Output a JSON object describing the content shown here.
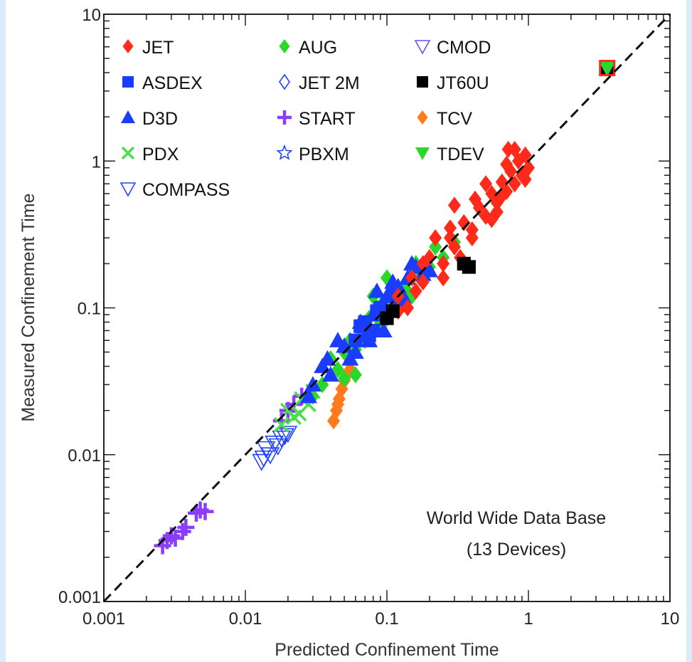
{
  "chart_data": {
    "type": "scatter",
    "xlabel": "Predicted Confinement Time",
    "ylabel": "Measured Confinement Time",
    "xscale": "log",
    "yscale": "log",
    "xlim": [
      0.001,
      10
    ],
    "ylim": [
      0.001,
      10
    ],
    "x_tick_labels": [
      "0.001",
      "0.01",
      "0.1",
      "1",
      "10"
    ],
    "y_tick_labels": [
      "0.001",
      "0.01",
      "0.1",
      "1",
      "10"
    ],
    "x_tick_values": [
      0.001,
      0.01,
      0.1,
      1,
      10
    ],
    "y_tick_values": [
      0.001,
      0.01,
      0.1,
      1,
      10
    ],
    "reference_line": {
      "style": "dashed",
      "color": "#111111",
      "from": [
        0.001,
        0.001
      ],
      "to": [
        10,
        10
      ]
    },
    "legend_placement": "top-left",
    "legend_columns": 3,
    "annotation_lines": [
      "World Wide Data Base",
      "(13 Devices)"
    ],
    "series": [
      {
        "name": "JET",
        "color": "#ff2a1a",
        "marker": "diamond-filled",
        "points": [
          [
            0.12,
            0.12
          ],
          [
            0.15,
            0.16
          ],
          [
            0.18,
            0.15
          ],
          [
            0.2,
            0.22
          ],
          [
            0.25,
            0.2
          ],
          [
            0.28,
            0.3
          ],
          [
            0.3,
            0.26
          ],
          [
            0.35,
            0.38
          ],
          [
            0.4,
            0.34
          ],
          [
            0.45,
            0.48
          ],
          [
            0.5,
            0.42
          ],
          [
            0.55,
            0.6
          ],
          [
            0.6,
            0.52
          ],
          [
            0.65,
            0.72
          ],
          [
            0.7,
            0.62
          ],
          [
            0.75,
            0.85
          ],
          [
            0.8,
            0.7
          ],
          [
            0.85,
            1.0
          ],
          [
            0.9,
            0.8
          ],
          [
            0.95,
            1.1
          ],
          [
            1.0,
            0.9
          ],
          [
            0.72,
            1.2
          ],
          [
            0.3,
            0.5
          ],
          [
            0.22,
            0.3
          ],
          [
            0.14,
            0.1
          ],
          [
            0.4,
            0.3
          ],
          [
            0.6,
            0.45
          ],
          [
            0.8,
            1.2
          ],
          [
            0.5,
            0.7
          ],
          [
            0.33,
            0.22
          ],
          [
            0.25,
            0.16
          ],
          [
            0.18,
            0.2
          ],
          [
            0.95,
            0.75
          ],
          [
            0.7,
            0.95
          ],
          [
            0.42,
            0.55
          ],
          [
            0.16,
            0.13
          ],
          [
            0.12,
            0.095
          ],
          [
            0.55,
            0.4
          ],
          [
            0.28,
            0.35
          ],
          [
            0.65,
            0.58
          ]
        ]
      },
      {
        "name": "ASDEX",
        "color": "#1a3cff",
        "marker": "square-filled",
        "points": [
          [
            0.06,
            0.06
          ],
          [
            0.07,
            0.08
          ],
          [
            0.08,
            0.07
          ],
          [
            0.09,
            0.1
          ],
          [
            0.1,
            0.09
          ],
          [
            0.11,
            0.13
          ],
          [
            0.065,
            0.075
          ],
          [
            0.085,
            0.095
          ],
          [
            0.075,
            0.065
          ],
          [
            0.12,
            0.11
          ]
        ]
      },
      {
        "name": "D3D",
        "color": "#1a3cff",
        "marker": "triangle-up-filled",
        "points": [
          [
            0.03,
            0.03
          ],
          [
            0.035,
            0.04
          ],
          [
            0.04,
            0.035
          ],
          [
            0.05,
            0.055
          ],
          [
            0.06,
            0.05
          ],
          [
            0.07,
            0.075
          ],
          [
            0.08,
            0.09
          ],
          [
            0.09,
            0.1
          ],
          [
            0.1,
            0.12
          ],
          [
            0.12,
            0.14
          ],
          [
            0.14,
            0.16
          ],
          [
            0.16,
            0.19
          ],
          [
            0.045,
            0.06
          ],
          [
            0.055,
            0.045
          ],
          [
            0.065,
            0.08
          ],
          [
            0.075,
            0.06
          ],
          [
            0.11,
            0.15
          ],
          [
            0.13,
            0.12
          ],
          [
            0.15,
            0.2
          ],
          [
            0.18,
            0.17
          ],
          [
            0.085,
            0.13
          ],
          [
            0.095,
            0.07
          ],
          [
            0.038,
            0.045
          ],
          [
            0.028,
            0.025
          ],
          [
            0.2,
            0.18
          ]
        ]
      },
      {
        "name": "PDX",
        "color": "#4ae04a",
        "marker": "x",
        "points": [
          [
            0.02,
            0.02
          ],
          [
            0.022,
            0.018
          ],
          [
            0.025,
            0.024
          ],
          [
            0.028,
            0.022
          ],
          [
            0.018,
            0.016
          ],
          [
            0.03,
            0.027
          ],
          [
            0.024,
            0.019
          ]
        ]
      },
      {
        "name": "COMPASS",
        "color": "#2244ff",
        "marker": "triangle-down-open",
        "points": [
          [
            0.013,
            0.009
          ],
          [
            0.014,
            0.011
          ],
          [
            0.015,
            0.01
          ],
          [
            0.016,
            0.012
          ],
          [
            0.017,
            0.0115
          ],
          [
            0.018,
            0.013
          ],
          [
            0.019,
            0.0135
          ],
          [
            0.02,
            0.014
          ],
          [
            0.0135,
            0.0095
          ]
        ]
      },
      {
        "name": "AUG",
        "color": "#2ad82a",
        "marker": "diamond-filled",
        "points": [
          [
            0.03,
            0.025
          ],
          [
            0.035,
            0.03
          ],
          [
            0.04,
            0.045
          ],
          [
            0.045,
            0.038
          ],
          [
            0.05,
            0.05
          ],
          [
            0.055,
            0.06
          ],
          [
            0.06,
            0.052
          ],
          [
            0.065,
            0.07
          ],
          [
            0.07,
            0.06
          ],
          [
            0.075,
            0.085
          ],
          [
            0.08,
            0.068
          ],
          [
            0.085,
            0.1
          ],
          [
            0.09,
            0.08
          ],
          [
            0.095,
            0.11
          ],
          [
            0.1,
            0.085
          ],
          [
            0.11,
            0.12
          ],
          [
            0.12,
            0.1
          ],
          [
            0.13,
            0.14
          ],
          [
            0.14,
            0.13
          ],
          [
            0.15,
            0.12
          ],
          [
            0.17,
            0.16
          ],
          [
            0.2,
            0.19
          ],
          [
            0.25,
            0.22
          ],
          [
            0.3,
            0.28
          ],
          [
            0.08,
            0.12
          ],
          [
            0.06,
            0.035
          ],
          [
            0.1,
            0.16
          ],
          [
            0.22,
            0.26
          ],
          [
            0.05,
            0.033
          ],
          [
            0.16,
            0.2
          ]
        ]
      },
      {
        "name": "JET 2M",
        "color": "#2244ff",
        "marker": "diamond-open",
        "points": []
      },
      {
        "name": "START",
        "color": "#8a3cff",
        "marker": "plus",
        "points": [
          [
            0.0026,
            0.0024
          ],
          [
            0.0028,
            0.0026
          ],
          [
            0.003,
            0.0028
          ],
          [
            0.0032,
            0.0027
          ],
          [
            0.0036,
            0.003
          ],
          [
            0.0038,
            0.0032
          ],
          [
            0.0045,
            0.004
          ],
          [
            0.0048,
            0.0042
          ],
          [
            0.0052,
            0.0041
          ],
          [
            0.02,
            0.02
          ],
          [
            0.022,
            0.022
          ],
          [
            0.025,
            0.025
          ],
          [
            0.018,
            0.017
          ]
        ]
      },
      {
        "name": "PBXM",
        "color": "#2244ff",
        "marker": "star-open",
        "points": []
      },
      {
        "name": "CMOD",
        "color": "#6a4cff",
        "marker": "triangle-down-open",
        "points": []
      },
      {
        "name": "JT60U",
        "color": "#000000",
        "marker": "square-filled",
        "points": [
          [
            0.1,
            0.085
          ],
          [
            0.11,
            0.095
          ],
          [
            0.35,
            0.2
          ],
          [
            0.38,
            0.19
          ],
          [
            3.6,
            4.3
          ]
        ]
      },
      {
        "name": "TCV",
        "color": "#ff7a1a",
        "marker": "diamond-filled",
        "points": [
          [
            0.042,
            0.017
          ],
          [
            0.044,
            0.02
          ],
          [
            0.046,
            0.024
          ],
          [
            0.048,
            0.028
          ],
          [
            0.05,
            0.032
          ],
          [
            0.052,
            0.035
          ],
          [
            0.055,
            0.038
          ],
          [
            0.045,
            0.022
          ]
        ]
      },
      {
        "name": "TDEV",
        "color": "#2ad82a",
        "marker": "triangle-down-filled",
        "points": [
          [
            3.6,
            4.3
          ]
        ]
      }
    ],
    "highlight_box": {
      "x": 3.6,
      "y": 4.3,
      "color": "#ff2a1a"
    }
  }
}
